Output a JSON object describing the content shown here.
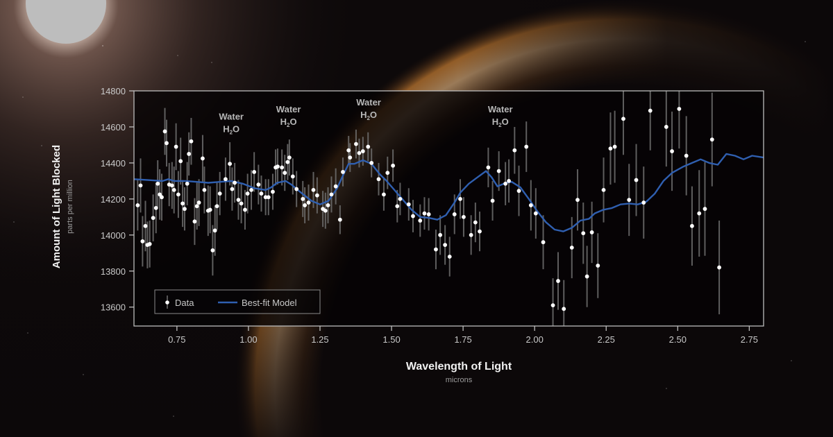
{
  "chart_data": {
    "type": "scatter",
    "title": "",
    "xlabel": "Wavelength of Light",
    "xlabel_units": "microns",
    "ylabel": "Amount of Light Blocked",
    "ylabel_units": "parts per million",
    "xlim": [
      0.6,
      2.8
    ],
    "ylim": [
      13495,
      14800
    ],
    "x_ticks": [
      0.75,
      1.0,
      1.25,
      1.5,
      1.75,
      2.0,
      2.25,
      2.5,
      2.75
    ],
    "x_tick_labels": [
      "0.75",
      "1.00",
      "1.25",
      "1.50",
      "1.75",
      "2.00",
      "2.25",
      "2.50",
      "2.75"
    ],
    "y_ticks": [
      13600,
      13800,
      14000,
      14200,
      14400,
      14600,
      14800
    ],
    "y_tick_labels": [
      "13600",
      "13800",
      "14000",
      "14200",
      "14400",
      "14600",
      "14800"
    ],
    "grid": false,
    "legend": {
      "position": "lower-left",
      "entries": [
        {
          "label": "Data",
          "marker": "white dot with error bar"
        },
        {
          "label": "Best-fit Model",
          "marker": "blue line",
          "color": "#2f5fb0"
        }
      ]
    },
    "annotations": [
      {
        "text": "Water",
        "formula": "H2O",
        "x": 0.94,
        "y_label_top": 14640
      },
      {
        "text": "Water",
        "formula": "H2O",
        "x": 1.14,
        "y_label_top": 14680
      },
      {
        "text": "Water",
        "formula": "H2O",
        "x": 1.42,
        "y_label_top": 14720
      },
      {
        "text": "Water",
        "formula": "H2O",
        "x": 1.88,
        "y_label_top": 14680
      }
    ],
    "series": [
      {
        "name": "Data",
        "kind": "scatter_errorbar",
        "color": "#ffffff",
        "points": [
          {
            "x": 0.613,
            "y": 14165,
            "err": 140
          },
          {
            "x": 0.623,
            "y": 14275,
            "err": 150
          },
          {
            "x": 0.63,
            "y": 13965,
            "err": 140
          },
          {
            "x": 0.64,
            "y": 14050,
            "err": 140
          },
          {
            "x": 0.647,
            "y": 13945,
            "err": 130
          },
          {
            "x": 0.655,
            "y": 13950,
            "err": 130
          },
          {
            "x": 0.667,
            "y": 14095,
            "err": 130
          },
          {
            "x": 0.677,
            "y": 14150,
            "err": 140
          },
          {
            "x": 0.683,
            "y": 14285,
            "err": 130
          },
          {
            "x": 0.69,
            "y": 14225,
            "err": 140
          },
          {
            "x": 0.697,
            "y": 14210,
            "err": 130
          },
          {
            "x": 0.708,
            "y": 14575,
            "err": 130
          },
          {
            "x": 0.714,
            "y": 14510,
            "err": 130
          },
          {
            "x": 0.723,
            "y": 14280,
            "err": 120
          },
          {
            "x": 0.733,
            "y": 14275,
            "err": 130
          },
          {
            "x": 0.74,
            "y": 14250,
            "err": 130
          },
          {
            "x": 0.747,
            "y": 14490,
            "err": 130
          },
          {
            "x": 0.755,
            "y": 14225,
            "err": 130
          },
          {
            "x": 0.763,
            "y": 14410,
            "err": 130
          },
          {
            "x": 0.77,
            "y": 14175,
            "err": 130
          },
          {
            "x": 0.777,
            "y": 14145,
            "err": 120
          },
          {
            "x": 0.786,
            "y": 14285,
            "err": 120
          },
          {
            "x": 0.792,
            "y": 14450,
            "err": 120
          },
          {
            "x": 0.8,
            "y": 14520,
            "err": 130
          },
          {
            "x": 0.812,
            "y": 14075,
            "err": 130
          },
          {
            "x": 0.82,
            "y": 14160,
            "err": 130
          },
          {
            "x": 0.827,
            "y": 14180,
            "err": 130
          },
          {
            "x": 0.84,
            "y": 14425,
            "err": 130
          },
          {
            "x": 0.846,
            "y": 14250,
            "err": 130
          },
          {
            "x": 0.859,
            "y": 14135,
            "err": 140
          },
          {
            "x": 0.866,
            "y": 14140,
            "err": 130
          },
          {
            "x": 0.875,
            "y": 13915,
            "err": 140
          },
          {
            "x": 0.883,
            "y": 14025,
            "err": 140
          },
          {
            "x": 0.89,
            "y": 14160,
            "err": 130
          },
          {
            "x": 0.9,
            "y": 14230,
            "err": 120
          },
          {
            "x": 0.92,
            "y": 14310,
            "err": 120
          },
          {
            "x": 0.935,
            "y": 14395,
            "err": 120
          },
          {
            "x": 0.943,
            "y": 14255,
            "err": 120
          },
          {
            "x": 0.952,
            "y": 14290,
            "err": 110
          },
          {
            "x": 0.965,
            "y": 14195,
            "err": 110
          },
          {
            "x": 0.975,
            "y": 14175,
            "err": 110
          },
          {
            "x": 0.988,
            "y": 14140,
            "err": 110
          },
          {
            "x": 0.997,
            "y": 14230,
            "err": 110
          },
          {
            "x": 1.01,
            "y": 14250,
            "err": 110
          },
          {
            "x": 1.02,
            "y": 14350,
            "err": 110
          },
          {
            "x": 1.035,
            "y": 14280,
            "err": 110
          },
          {
            "x": 1.045,
            "y": 14230,
            "err": 100
          },
          {
            "x": 1.06,
            "y": 14210,
            "err": 100
          },
          {
            "x": 1.07,
            "y": 14210,
            "err": 100
          },
          {
            "x": 1.085,
            "y": 14240,
            "err": 100
          },
          {
            "x": 1.095,
            "y": 14375,
            "err": 100
          },
          {
            "x": 1.102,
            "y": 14380,
            "err": 100
          },
          {
            "x": 1.117,
            "y": 14375,
            "err": 100
          },
          {
            "x": 1.127,
            "y": 14345,
            "err": 100
          },
          {
            "x": 1.137,
            "y": 14405,
            "err": 100
          },
          {
            "x": 1.143,
            "y": 14430,
            "err": 100
          },
          {
            "x": 1.155,
            "y": 14325,
            "err": 100
          },
          {
            "x": 1.168,
            "y": 14255,
            "err": 100
          },
          {
            "x": 1.19,
            "y": 14200,
            "err": 100
          },
          {
            "x": 1.197,
            "y": 14165,
            "err": 100
          },
          {
            "x": 1.21,
            "y": 14180,
            "err": 100
          },
          {
            "x": 1.227,
            "y": 14250,
            "err": 100
          },
          {
            "x": 1.24,
            "y": 14220,
            "err": 100
          },
          {
            "x": 1.26,
            "y": 14145,
            "err": 100
          },
          {
            "x": 1.269,
            "y": 14135,
            "err": 100
          },
          {
            "x": 1.278,
            "y": 14165,
            "err": 100
          },
          {
            "x": 1.29,
            "y": 14225,
            "err": 100
          },
          {
            "x": 1.305,
            "y": 14270,
            "err": 100
          },
          {
            "x": 1.32,
            "y": 14085,
            "err": 80
          },
          {
            "x": 1.33,
            "y": 14350,
            "err": 80
          },
          {
            "x": 1.35,
            "y": 14470,
            "err": 80
          },
          {
            "x": 1.355,
            "y": 14430,
            "err": 80
          },
          {
            "x": 1.376,
            "y": 14505,
            "err": 80
          },
          {
            "x": 1.387,
            "y": 14455,
            "err": 80
          },
          {
            "x": 1.4,
            "y": 14465,
            "err": 80
          },
          {
            "x": 1.418,
            "y": 14490,
            "err": 80
          },
          {
            "x": 1.43,
            "y": 14400,
            "err": 80
          },
          {
            "x": 1.455,
            "y": 14310,
            "err": 90
          },
          {
            "x": 1.473,
            "y": 14225,
            "err": 90
          },
          {
            "x": 1.486,
            "y": 14345,
            "err": 90
          },
          {
            "x": 1.505,
            "y": 14385,
            "err": 90
          },
          {
            "x": 1.52,
            "y": 14160,
            "err": 90
          },
          {
            "x": 1.53,
            "y": 14200,
            "err": 90
          },
          {
            "x": 1.56,
            "y": 14170,
            "err": 90
          },
          {
            "x": 1.575,
            "y": 14105,
            "err": 90
          },
          {
            "x": 1.6,
            "y": 14080,
            "err": 90
          },
          {
            "x": 1.615,
            "y": 14120,
            "err": 90
          },
          {
            "x": 1.63,
            "y": 14115,
            "err": 90
          },
          {
            "x": 1.655,
            "y": 13920,
            "err": 110
          },
          {
            "x": 1.67,
            "y": 14000,
            "err": 110
          },
          {
            "x": 1.687,
            "y": 13945,
            "err": 110
          },
          {
            "x": 1.703,
            "y": 13880,
            "err": 110
          },
          {
            "x": 1.72,
            "y": 14115,
            "err": 110
          },
          {
            "x": 1.74,
            "y": 14200,
            "err": 110
          },
          {
            "x": 1.752,
            "y": 14100,
            "err": 110
          },
          {
            "x": 1.778,
            "y": 14000,
            "err": 110
          },
          {
            "x": 1.793,
            "y": 14070,
            "err": 110
          },
          {
            "x": 1.808,
            "y": 14020,
            "err": 110
          },
          {
            "x": 1.838,
            "y": 14375,
            "err": 110
          },
          {
            "x": 1.853,
            "y": 14190,
            "err": 110
          },
          {
            "x": 1.875,
            "y": 14355,
            "err": 110
          },
          {
            "x": 1.898,
            "y": 14285,
            "err": 120
          },
          {
            "x": 1.91,
            "y": 14300,
            "err": 120
          },
          {
            "x": 1.93,
            "y": 14470,
            "err": 130
          },
          {
            "x": 1.945,
            "y": 14245,
            "err": 140
          },
          {
            "x": 1.971,
            "y": 14490,
            "err": 140
          },
          {
            "x": 1.987,
            "y": 14165,
            "err": 140
          },
          {
            "x": 2.004,
            "y": 14120,
            "err": 140
          },
          {
            "x": 2.03,
            "y": 13960,
            "err": 150
          },
          {
            "x": 2.064,
            "y": 13610,
            "err": 150
          },
          {
            "x": 2.082,
            "y": 13745,
            "err": 160
          },
          {
            "x": 2.102,
            "y": 13590,
            "err": 160
          },
          {
            "x": 2.13,
            "y": 13930,
            "err": 170
          },
          {
            "x": 2.15,
            "y": 14195,
            "err": 170
          },
          {
            "x": 2.17,
            "y": 14010,
            "err": 170
          },
          {
            "x": 2.183,
            "y": 13770,
            "err": 170
          },
          {
            "x": 2.2,
            "y": 14015,
            "err": 170
          },
          {
            "x": 2.221,
            "y": 13830,
            "err": 180
          },
          {
            "x": 2.241,
            "y": 14250,
            "err": 180
          },
          {
            "x": 2.265,
            "y": 14480,
            "err": 200
          },
          {
            "x": 2.28,
            "y": 14490,
            "err": 200
          },
          {
            "x": 2.31,
            "y": 14645,
            "err": 200
          },
          {
            "x": 2.33,
            "y": 14195,
            "err": 200
          },
          {
            "x": 2.355,
            "y": 14305,
            "err": 200
          },
          {
            "x": 2.381,
            "y": 14180,
            "err": 200
          },
          {
            "x": 2.404,
            "y": 14690,
            "err": 220
          },
          {
            "x": 2.46,
            "y": 14600,
            "err": 220
          },
          {
            "x": 2.48,
            "y": 14465,
            "err": 220
          },
          {
            "x": 2.505,
            "y": 14700,
            "err": 220
          },
          {
            "x": 2.53,
            "y": 14440,
            "err": 220
          },
          {
            "x": 2.55,
            "y": 14050,
            "err": 220
          },
          {
            "x": 2.575,
            "y": 14120,
            "err": 240
          },
          {
            "x": 2.595,
            "y": 14145,
            "err": 260
          },
          {
            "x": 2.62,
            "y": 14530,
            "err": 260
          },
          {
            "x": 2.645,
            "y": 13820,
            "err": 260
          }
        ]
      },
      {
        "name": "Best-fit Model",
        "kind": "line",
        "color": "#2f5fb0",
        "x": [
          0.6,
          0.65,
          0.7,
          0.72,
          0.74,
          0.78,
          0.82,
          0.86,
          0.9,
          0.94,
          0.98,
          1.02,
          1.06,
          1.08,
          1.1,
          1.13,
          1.15,
          1.18,
          1.22,
          1.25,
          1.28,
          1.31,
          1.33,
          1.35,
          1.37,
          1.4,
          1.43,
          1.46,
          1.48,
          1.51,
          1.54,
          1.57,
          1.6,
          1.63,
          1.66,
          1.69,
          1.72,
          1.74,
          1.77,
          1.8,
          1.83,
          1.85,
          1.87,
          1.9,
          1.92,
          1.95,
          1.98,
          2.01,
          2.04,
          2.07,
          2.1,
          2.13,
          2.16,
          2.19,
          2.21,
          2.24,
          2.27,
          2.3,
          2.33,
          2.36,
          2.39,
          2.42,
          2.45,
          2.48,
          2.52,
          2.55,
          2.58,
          2.61,
          2.64,
          2.67,
          2.7,
          2.73,
          2.76,
          2.8
        ],
        "y": [
          14310,
          14305,
          14300,
          14310,
          14300,
          14300,
          14295,
          14290,
          14295,
          14300,
          14285,
          14260,
          14250,
          14265,
          14290,
          14300,
          14280,
          14240,
          14190,
          14170,
          14190,
          14260,
          14330,
          14395,
          14395,
          14415,
          14395,
          14335,
          14305,
          14250,
          14195,
          14140,
          14100,
          14095,
          14085,
          14110,
          14180,
          14235,
          14285,
          14320,
          14355,
          14320,
          14270,
          14290,
          14295,
          14265,
          14200,
          14130,
          14070,
          14030,
          14020,
          14040,
          14080,
          14090,
          14120,
          14140,
          14150,
          14170,
          14175,
          14170,
          14185,
          14230,
          14300,
          14345,
          14380,
          14400,
          14420,
          14400,
          14390,
          14450,
          14440,
          14420,
          14440,
          14430
        ]
      }
    ]
  },
  "axes": {
    "x_title": "Wavelength of Light",
    "x_units": "microns",
    "y_title": "Amount of Light Blocked",
    "y_units": "parts per million"
  },
  "legend": {
    "data_label": "Data",
    "model_label": "Best-fit Model"
  },
  "annotations": [
    {
      "word": "Water",
      "formula_main": "H",
      "formula_sub": "2",
      "formula_end": "O"
    },
    {
      "word": "Water",
      "formula_main": "H",
      "formula_sub": "2",
      "formula_end": "O"
    },
    {
      "word": "Water",
      "formula_main": "H",
      "formula_sub": "2",
      "formula_end": "O"
    },
    {
      "word": "Water",
      "formula_main": "H",
      "formula_sub": "2",
      "formula_end": "O"
    }
  ],
  "colors": {
    "model_line": "#2f5fb0",
    "data_points": "#ffffff",
    "error_bars": "#6e6e6e",
    "frame": "#bdbdbd",
    "axis_text": "#c9c9c9",
    "annotation_text": "#b8b8b8"
  }
}
